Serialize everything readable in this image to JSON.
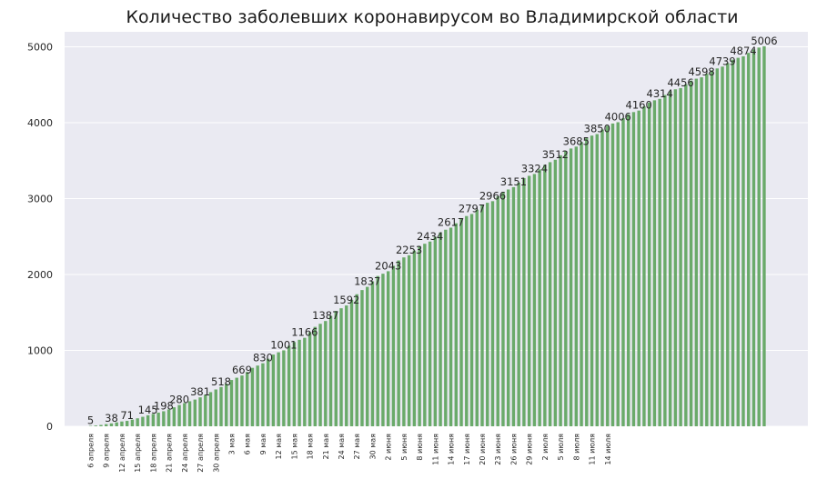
{
  "chart_data": {
    "type": "bar",
    "title": "Количество заболевших коронавирусом во Владимирской области",
    "xlabel": "",
    "ylabel": "",
    "ylim": [
      0,
      5250
    ],
    "yticks": [
      0,
      1000,
      2000,
      3000,
      4000,
      5000
    ],
    "grid": true,
    "bar_color": "#6aaa6a",
    "background_color": "#eaeaf2",
    "tick_labels": [
      "6 апреля",
      "9 апреля",
      "12 апреля",
      "15 апреля",
      "18 апреля",
      "21 апреля",
      "24 апреля",
      "27 апреля",
      "30 апреля",
      "3 мая",
      "6 мая",
      "9 мая",
      "12 мая",
      "15 мая",
      "18 мая",
      "21 мая",
      "24 мая",
      "27 мая",
      "30 мая",
      "2 июня",
      "5 июня",
      "8 июня",
      "11 июня",
      "14 июня",
      "17 июня",
      "20 июня",
      "23 июня",
      "26 июня",
      "29 июня",
      "2 июля",
      "5 июля",
      "8 июля",
      "11 июля",
      "14 июля"
    ],
    "values": [
      5,
      10,
      18,
      28,
      38,
      52,
      63,
      71,
      88,
      105,
      125,
      145,
      163,
      180,
      198,
      222,
      250,
      280,
      305,
      330,
      352,
      381,
      415,
      450,
      485,
      518,
      560,
      610,
      640,
      669,
      715,
      770,
      800,
      830,
      890,
      945,
      975,
      1001,
      1060,
      1110,
      1140,
      1166,
      1240,
      1310,
      1350,
      1387,
      1455,
      1520,
      1555,
      1592,
      1665,
      1740,
      1795,
      1837,
      1910,
      1980,
      2010,
      2043,
      2115,
      2185,
      2225,
      2253,
      2315,
      2375,
      2405,
      2434,
      2495,
      2555,
      2590,
      2617,
      2675,
      2735,
      2770,
      2797,
      2855,
      2915,
      2945,
      2966,
      3030,
      3090,
      3120,
      3151,
      3210,
      3270,
      3300,
      3324,
      3385,
      3445,
      3480,
      3512,
      3570,
      3625,
      3660,
      3685,
      3745,
      3800,
      3830,
      3850,
      3910,
      3960,
      3990,
      4006,
      4060,
      4110,
      4140,
      4160,
      4215,
      4265,
      4295,
      4314,
      4365,
      4415,
      4440,
      4456,
      4505,
      4555,
      4580,
      4598,
      4645,
      4690,
      4715,
      4739,
      4785,
      4830,
      4855,
      4874,
      4920,
      4965,
      4990,
      5006
    ],
    "data_labels": [
      {
        "index": 0,
        "value": 5
      },
      {
        "index": 4,
        "value": 38
      },
      {
        "index": 7,
        "value": 71
      },
      {
        "index": 11,
        "value": 145
      },
      {
        "index": 14,
        "value": 198
      },
      {
        "index": 17,
        "value": 280
      },
      {
        "index": 21,
        "value": 381
      },
      {
        "index": 25,
        "value": 518
      },
      {
        "index": 29,
        "value": 669
      },
      {
        "index": 33,
        "value": 830
      },
      {
        "index": 37,
        "value": 1001
      },
      {
        "index": 41,
        "value": 1166
      },
      {
        "index": 45,
        "value": 1387
      },
      {
        "index": 49,
        "value": 1592
      },
      {
        "index": 53,
        "value": 1837
      },
      {
        "index": 57,
        "value": 2043
      },
      {
        "index": 61,
        "value": 2253
      },
      {
        "index": 65,
        "value": 2434
      },
      {
        "index": 69,
        "value": 2617
      },
      {
        "index": 73,
        "value": 2797
      },
      {
        "index": 77,
        "value": 2966
      },
      {
        "index": 81,
        "value": 3151
      },
      {
        "index": 85,
        "value": 3324
      },
      {
        "index": 89,
        "value": 3512
      },
      {
        "index": 93,
        "value": 3685
      },
      {
        "index": 97,
        "value": 3850
      },
      {
        "index": 101,
        "value": 4006
      },
      {
        "index": 105,
        "value": 4160
      },
      {
        "index": 109,
        "value": 4314
      },
      {
        "index": 113,
        "value": 4456
      },
      {
        "index": 117,
        "value": 4598
      },
      {
        "index": 121,
        "value": 4739
      },
      {
        "index": 125,
        "value": 4874
      },
      {
        "index": 129,
        "value": 5006
      }
    ]
  }
}
